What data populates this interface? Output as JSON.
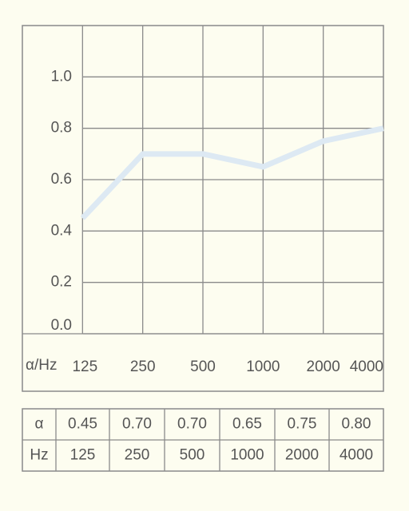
{
  "chart_data": {
    "type": "line",
    "x_label": "α/Hz",
    "categories": [
      "125",
      "250",
      "500",
      "1000",
      "2000",
      "4000"
    ],
    "values": [
      0.45,
      0.7,
      0.7,
      0.65,
      0.75,
      0.8
    ],
    "color": "#dde9f3",
    "ylim": [
      0,
      1.2
    ],
    "yticks": [
      {
        "value": 0,
        "label": "0.0"
      },
      {
        "value": 0.2,
        "label": "0.2"
      },
      {
        "value": 0.4,
        "label": "0.4"
      },
      {
        "value": 0.6,
        "label": "0.6"
      },
      {
        "value": 0.8,
        "label": "0.8"
      },
      {
        "value": 1,
        "label": "1.0"
      }
    ],
    "grid": true
  },
  "table": {
    "rows": [
      [
        "α",
        "0.45",
        "0.70",
        "0.70",
        "0.65",
        "0.75",
        "0.80"
      ],
      [
        "Hz",
        "125",
        "250",
        "500",
        "1000",
        "2000",
        "4000"
      ]
    ]
  }
}
